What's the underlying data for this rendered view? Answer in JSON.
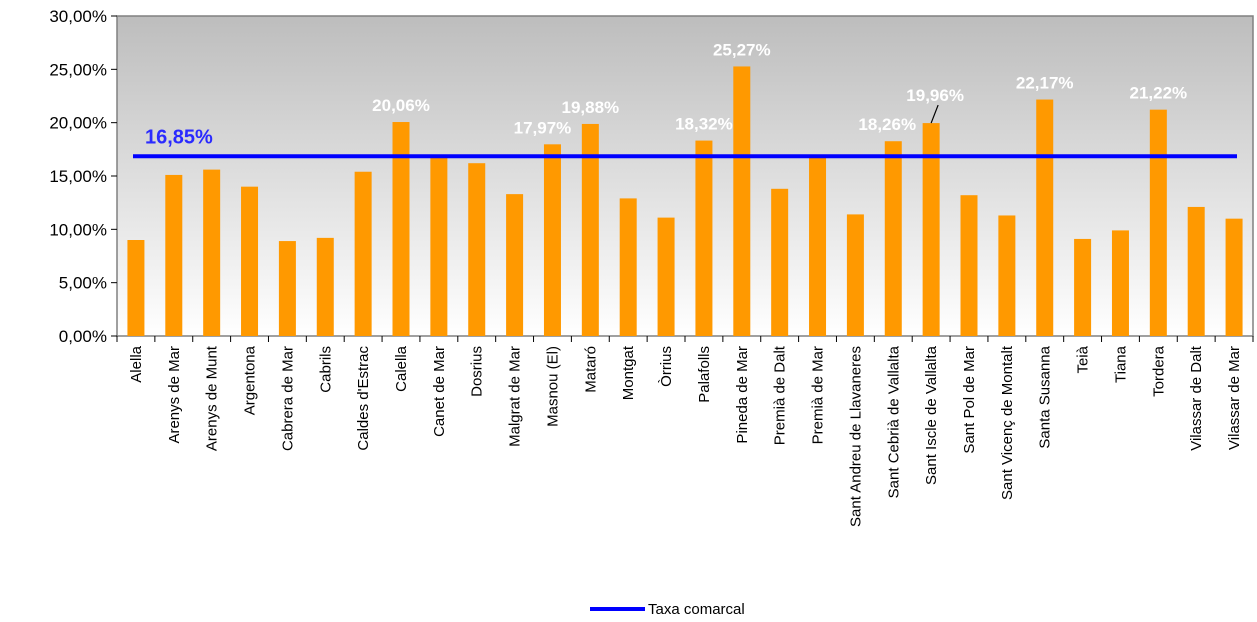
{
  "chart_data": {
    "type": "bar",
    "categories": [
      "Alella",
      "Arenys de Mar",
      "Arenys de Munt",
      "Argentona",
      "Cabrera de Mar",
      "Cabrils",
      "Caldes d'Estrac",
      "Calella",
      "Canet de Mar",
      "Dosrius",
      "Malgrat de Mar",
      "Masnou (El)",
      "Mataró",
      "Montgat",
      "Òrrius",
      "Palafolls",
      "Pineda de Mar",
      "Premià de Dalt",
      "Premià de Mar",
      "Sant Andreu de Llavaneres",
      "Sant Cebrià de Vallalta",
      "Sant Iscle de Vallalta",
      "Sant Pol de Mar",
      "Sant Vicenç de Montalt",
      "Santa Susanna",
      "Teià",
      "Tiana",
      "Tordera",
      "Vilassar de Dalt",
      "Vilassar de Mar"
    ],
    "series": [
      {
        "values": [
          9.0,
          15.1,
          15.6,
          14.0,
          8.9,
          9.2,
          15.4,
          20.06,
          16.9,
          16.2,
          13.3,
          17.97,
          19.88,
          12.9,
          11.1,
          18.32,
          25.27,
          13.8,
          16.9,
          11.4,
          18.26,
          19.96,
          13.2,
          11.3,
          22.17,
          9.1,
          9.9,
          21.22,
          12.1,
          11.0
        ],
        "color": "#ff9900"
      }
    ],
    "data_labels": [
      {
        "index": 7,
        "text": "20,06%"
      },
      {
        "index": 11,
        "text": "17,97%"
      },
      {
        "index": 12,
        "text": "19,88%"
      },
      {
        "index": 15,
        "text": "18,32%"
      },
      {
        "index": 16,
        "text": "25,27%"
      },
      {
        "index": 20,
        "text": "18,26%"
      },
      {
        "index": 21,
        "text": "19,96%"
      },
      {
        "index": 24,
        "text": "22,17%"
      },
      {
        "index": 27,
        "text": "21,22%"
      }
    ],
    "reference_line": {
      "name": "Taxa comarcal",
      "value": 16.85,
      "label": "16,85%",
      "color": "#0000ff"
    },
    "ylim": [
      0,
      30
    ],
    "yticks": [
      0,
      5,
      10,
      15,
      20,
      25,
      30
    ],
    "ytick_labels": [
      "0,00%",
      "5,00%",
      "10,00%",
      "15,00%",
      "20,00%",
      "25,00%",
      "30,00%"
    ],
    "title": "",
    "xlabel": "",
    "ylabel": "",
    "legend": {
      "position": "bottom-center",
      "entries": [
        "Taxa comarcal"
      ]
    },
    "grid": false,
    "plot_background": "gradient-gray"
  }
}
